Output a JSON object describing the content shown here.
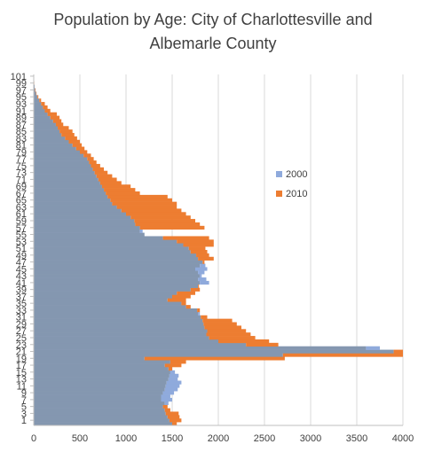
{
  "title_lines": [
    "Population by Age: City of Charlottesville and",
    "Albemarle County"
  ],
  "colors": {
    "2000": "#8faadc",
    "2010": "#ed7d31",
    "overlap": "#8497b0",
    "grid": "#d9d9d9",
    "axis": "#bfbfbf"
  },
  "chart_data": {
    "type": "bar",
    "orientation": "horizontal",
    "title": "Population by Age: City of Charlottesville and Albemarle County",
    "xlim": [
      0,
      4000
    ],
    "x_ticks": [
      0,
      500,
      1000,
      1500,
      2000,
      2500,
      3000,
      3500,
      4000
    ],
    "y_tick_labels": [
      "1",
      "3",
      "5",
      "7",
      "9",
      "11",
      "13",
      "15",
      "17",
      "19",
      "21",
      "23",
      "25",
      "27",
      "29",
      "31",
      "33",
      "35",
      "37",
      "39",
      "41",
      "43",
      "45",
      "47",
      "49",
      "51",
      "53",
      "55",
      "57",
      "59",
      "61",
      "63",
      "65",
      "67",
      "69",
      "71",
      "73",
      "75",
      "77",
      "79",
      "81",
      "83",
      "85",
      "87",
      "89",
      "91",
      "93",
      "95",
      "97",
      "99",
      "101"
    ],
    "grid": true,
    "legend_position": "right",
    "ages": [
      0,
      1,
      2,
      3,
      4,
      5,
      6,
      7,
      8,
      9,
      10,
      11,
      12,
      13,
      14,
      15,
      16,
      17,
      18,
      19,
      20,
      21,
      22,
      23,
      24,
      25,
      26,
      27,
      28,
      29,
      30,
      31,
      32,
      33,
      34,
      35,
      36,
      37,
      38,
      39,
      40,
      41,
      42,
      43,
      44,
      45,
      46,
      47,
      48,
      49,
      50,
      51,
      52,
      53,
      54,
      55,
      56,
      57,
      58,
      59,
      60,
      61,
      62,
      63,
      64,
      65,
      66,
      67,
      68,
      69,
      70,
      71,
      72,
      73,
      74,
      75,
      76,
      77,
      78,
      79,
      80,
      81,
      82,
      83,
      84,
      85,
      86,
      87,
      88,
      89,
      90,
      91,
      92,
      93,
      94,
      95,
      96,
      97,
      98,
      99,
      100,
      101
    ],
    "series": [
      {
        "name": "2000",
        "values": [
          1500,
          1470,
          1450,
          1430,
          1420,
          1400,
          1460,
          1500,
          1480,
          1520,
          1560,
          1580,
          1600,
          1560,
          1570,
          1530,
          1460,
          1420,
          1480,
          1200,
          2700,
          3900,
          3750,
          2300,
          2000,
          1900,
          1870,
          1880,
          1850,
          1840,
          1830,
          1810,
          1800,
          1770,
          1650,
          1600,
          1450,
          1500,
          1550,
          1700,
          1780,
          1900,
          1870,
          1820,
          1850,
          1880,
          1860,
          1830,
          1780,
          1760,
          1700,
          1680,
          1620,
          1550,
          1400,
          1200,
          1180,
          1150,
          1100,
          1090,
          1050,
          1000,
          950,
          900,
          850,
          830,
          800,
          780,
          760,
          740,
          720,
          700,
          680,
          660,
          640,
          620,
          600,
          580,
          540,
          500,
          460,
          420,
          380,
          340,
          300,
          280,
          260,
          240,
          210,
          180,
          150,
          120,
          100,
          80,
          60,
          40,
          25,
          15,
          10,
          5,
          2,
          1
        ]
      },
      {
        "name": "2010",
        "values": [
          1550,
          1600,
          1580,
          1570,
          1480,
          1450,
          1420,
          1380,
          1380,
          1400,
          1420,
          1430,
          1440,
          1460,
          1470,
          1480,
          1500,
          1600,
          1650,
          2720,
          4000,
          4000,
          3600,
          2650,
          2550,
          2400,
          2350,
          2300,
          2250,
          2200,
          2150,
          1880,
          1780,
          1800,
          1700,
          1650,
          1650,
          1700,
          1750,
          1800,
          1790,
          1800,
          1780,
          1800,
          1780,
          1750,
          1800,
          1850,
          1950,
          1900,
          1880,
          1860,
          1950,
          1950,
          1900,
          1200,
          1150,
          1850,
          1800,
          1750,
          1700,
          1650,
          1600,
          1550,
          1550,
          1500,
          1450,
          1150,
          1100,
          1050,
          950,
          900,
          850,
          800,
          760,
          720,
          680,
          650,
          620,
          580,
          550,
          520,
          500,
          470,
          440,
          420,
          380,
          320,
          300,
          280,
          250,
          180,
          150,
          120,
          80,
          50,
          30,
          20,
          10,
          6,
          3,
          1
        ]
      }
    ],
    "legend": [
      "2000",
      "2010"
    ]
  }
}
